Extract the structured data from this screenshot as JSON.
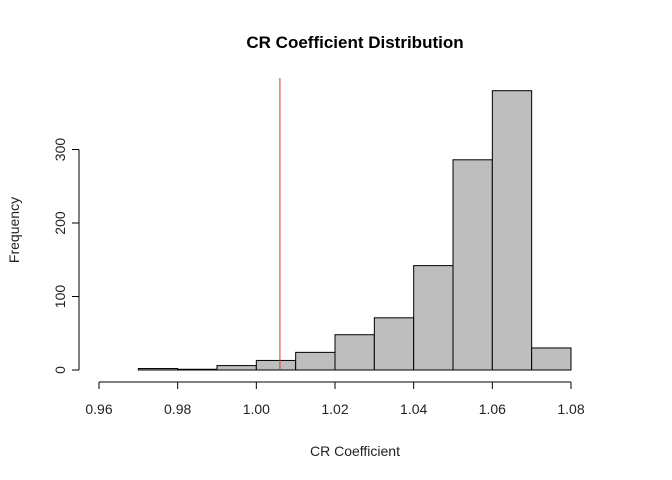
{
  "chart_data": {
    "type": "bar",
    "title": "CR Coefficient Distribution",
    "xlabel": "CR Coefficient",
    "ylabel": "Frequency",
    "bin_edges": [
      0.97,
      0.98,
      0.99,
      1.0,
      1.01,
      1.02,
      1.03,
      1.04,
      1.05,
      1.06,
      1.07,
      1.08
    ],
    "values": [
      2,
      1,
      6,
      13,
      24,
      48,
      71,
      142,
      286,
      380,
      30
    ],
    "xlim": [
      0.96,
      1.08
    ],
    "ylim": [
      0,
      400
    ],
    "x_ticks": [
      "0.96",
      "0.98",
      "1.00",
      "1.02",
      "1.04",
      "1.06",
      "1.08"
    ],
    "y_ticks": [
      "0",
      "100",
      "200",
      "300"
    ],
    "reference_line": {
      "x": 1.006,
      "color": "#e03030"
    },
    "bar_color": "#bebebe",
    "grid": false
  }
}
